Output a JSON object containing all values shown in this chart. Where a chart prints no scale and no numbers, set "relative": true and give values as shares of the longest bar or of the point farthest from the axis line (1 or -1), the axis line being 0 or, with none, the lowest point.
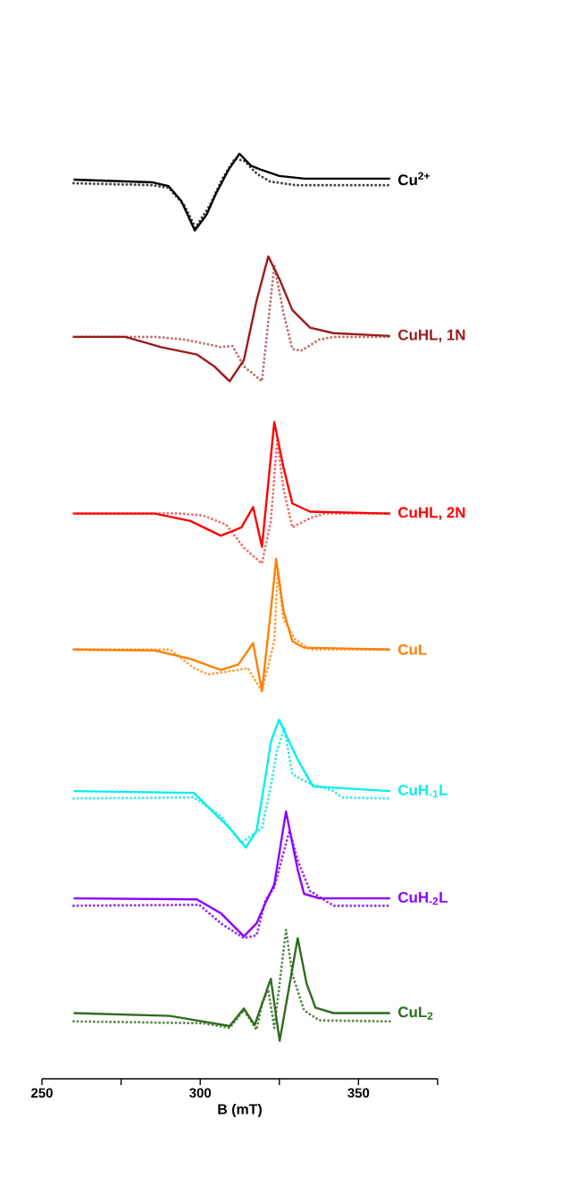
{
  "chart_data": {
    "type": "line",
    "relative": true,
    "xlabel": "B (mT)",
    "xlim": [
      250,
      375
    ],
    "xticks": [
      250,
      {
        "value": 275,
        "label": null
      },
      300,
      {
        "value": 325,
        "label": null
      },
      350,
      {
        "value": 375,
        "label": null
      }
    ],
    "series": [
      {
        "color": "#404040",
        "line_style": "dotted",
        "x": [
          260,
          285,
          290,
          295,
          298.5,
          303,
          307,
          311,
          314,
          318,
          322,
          330,
          360
        ],
        "values": [
          0.968,
          0.966,
          0.963,
          0.944,
          0.92,
          0.944,
          0.973,
          0.995,
          0.992,
          0.978,
          0.97,
          0.966,
          0.966
        ]
      },
      {
        "name": "Cu$^{2+}$",
        "color": "#000000",
        "line_style": "solid",
        "x": [
          260,
          285,
          290,
          294,
          298.3,
          302,
          305,
          309,
          312.4,
          316,
          319,
          325,
          333,
          360
        ],
        "values": [
          0.972,
          0.969,
          0.965,
          0.949,
          0.917,
          0.934,
          0.957,
          0.983,
          1.0,
          0.987,
          0.983,
          0.976,
          0.973,
          0.973
        ]
      },
      {
        "color": "#c07070",
        "line_style": "dotted",
        "x": [
          260,
          285.6,
          295.2,
          306.5,
          310.2,
          313.8,
          319.5,
          320.9,
          323.4,
          326.3,
          329.1,
          331.9,
          337.6,
          342.1,
          360
        ],
        "values": [
          0.802,
          0.802,
          0.799,
          0.791,
          0.792,
          0.77,
          0.754,
          0.799,
          0.879,
          0.828,
          0.789,
          0.787,
          0.799,
          0.802,
          0.802
        ]
      },
      {
        "name": "CuHL, 1N",
        "color": "#9b1b1b",
        "line_style": "solid",
        "x": [
          260,
          276.3,
          287.6,
          298.9,
          304.5,
          309.3,
          313.8,
          317.8,
          321.5,
          325.1,
          329.1,
          334.7,
          342.1,
          360
        ],
        "values": [
          0.802,
          0.802,
          0.791,
          0.783,
          0.77,
          0.754,
          0.777,
          0.841,
          0.889,
          0.864,
          0.831,
          0.812,
          0.806,
          0.803
        ]
      },
      {
        "color": "#f07070",
        "line_style": "dotted",
        "x": [
          260,
          293.2,
          300.8,
          308.2,
          313.8,
          319.5,
          322.3,
          324.3,
          326.3,
          329.1,
          334.7,
          339.3,
          360
        ],
        "values": [
          0.611,
          0.611,
          0.609,
          0.599,
          0.574,
          0.557,
          0.603,
          0.69,
          0.638,
          0.596,
          0.606,
          0.611,
          0.611
        ]
      },
      {
        "name": "CuHL, 2N",
        "color": "#ff0000",
        "line_style": "solid",
        "x": [
          260,
          285.6,
          296.9,
          306.5,
          313.0,
          316.7,
          319.5,
          323.4,
          326.3,
          329.1,
          334.7,
          360
        ],
        "values": [
          0.611,
          0.611,
          0.603,
          0.587,
          0.596,
          0.618,
          0.575,
          0.71,
          0.661,
          0.622,
          0.613,
          0.611
        ]
      },
      {
        "color": "#ffa040",
        "line_style": "dotted",
        "x": [
          260,
          290.4,
          298.0,
          302.5,
          312.1,
          315.0,
          319.5,
          323.4,
          324.5,
          326.3,
          330.0,
          334.7,
          360
        ],
        "values": [
          0.464,
          0.464,
          0.444,
          0.437,
          0.442,
          0.444,
          0.419,
          0.473,
          0.548,
          0.497,
          0.475,
          0.464,
          0.464
        ]
      },
      {
        "name": "CuL",
        "color": "#ff8000",
        "line_style": "solid",
        "x": [
          260,
          285.6,
          296.9,
          306.5,
          312.1,
          316.7,
          319.5,
          322.3,
          324.0,
          326.3,
          329.1,
          332.8,
          360
        ],
        "values": [
          0.464,
          0.463,
          0.454,
          0.442,
          0.448,
          0.471,
          0.419,
          0.506,
          0.562,
          0.506,
          0.473,
          0.466,
          0.464
        ]
      },
      {
        "color": "#40e8e8",
        "line_style": "dotted",
        "x": [
          260,
          298.0,
          306.5,
          313.0,
          319.5,
          322.3,
          324.3,
          326.6,
          329.1,
          334.7,
          342.1,
          344.9,
          360
        ],
        "values": [
          0.303,
          0.304,
          0.284,
          0.255,
          0.271,
          0.316,
          0.355,
          0.379,
          0.329,
          0.319,
          0.311,
          0.304,
          0.303
        ]
      },
      {
        "name": "CuH$_{-1}$L",
        "color": "#00f0f0",
        "line_style": "solid",
        "x": [
          260,
          298.0,
          304.5,
          309.3,
          314.4,
          317.8,
          320.6,
          322.3,
          324.9,
          330.8,
          335.6,
          360
        ],
        "values": [
          0.311,
          0.309,
          0.287,
          0.271,
          0.25,
          0.268,
          0.326,
          0.364,
          0.388,
          0.345,
          0.316,
          0.311
        ]
      },
      {
        "color": "#9933ee",
        "line_style": "dotted",
        "x": [
          260,
          299.7,
          306.5,
          313.8,
          317.8,
          320.6,
          323.4,
          328.2,
          330.8,
          334.7,
          342.1,
          360
        ],
        "values": [
          0.187,
          0.188,
          0.168,
          0.152,
          0.155,
          0.193,
          0.207,
          0.268,
          0.236,
          0.203,
          0.187,
          0.187
        ]
      },
      {
        "name": "CuH$_{-2}$L",
        "color": "#8b00ff",
        "line_style": "solid",
        "x": [
          260,
          298.9,
          306.5,
          313.8,
          317.8,
          320.6,
          323.4,
          327.1,
          330.8,
          332.8,
          337.6,
          360
        ],
        "values": [
          0.195,
          0.194,
          0.179,
          0.154,
          0.168,
          0.19,
          0.21,
          0.289,
          0.226,
          0.2,
          0.195,
          0.195
        ]
      },
      {
        "color": "#5a8a4a",
        "line_style": "dotted",
        "x": [
          260,
          300.8,
          309.3,
          313.8,
          317.8,
          319.5,
          321.5,
          323.4,
          327.1,
          329.1,
          332.8,
          337.6,
          360
        ],
        "values": [
          0.062,
          0.06,
          0.055,
          0.074,
          0.053,
          0.081,
          0.096,
          0.055,
          0.161,
          0.113,
          0.074,
          0.063,
          0.062
        ]
      },
      {
        "name": "CuL$_{2}$",
        "color": "#2e6b1f",
        "line_style": "solid",
        "x": [
          260,
          290.4,
          300.8,
          309.3,
          313.8,
          317.2,
          322.3,
          325.1,
          330.8,
          333.6,
          336.4,
          342.1,
          360
        ],
        "values": [
          0.071,
          0.068,
          0.062,
          0.057,
          0.076,
          0.058,
          0.108,
          0.041,
          0.152,
          0.103,
          0.077,
          0.071,
          0.071
        ]
      }
    ]
  }
}
